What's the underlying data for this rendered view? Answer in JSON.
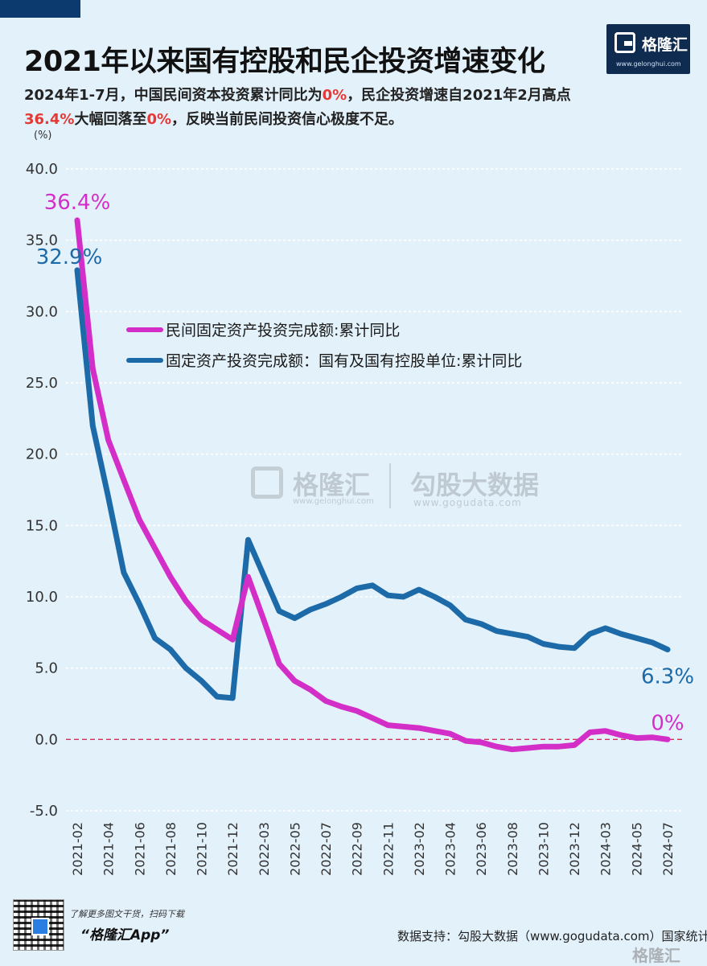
{
  "header": {
    "title": "2021年以来国有控股和民企投资增速变化",
    "subtitle_1": "2024年1-7月，中国民间资本投资累计同比为",
    "subtitle_red_1": "0%",
    "subtitle_2": "，民企投资增速自2021年2月高点",
    "subtitle_red_2": "36.4%",
    "subtitle_3": "大幅回落至",
    "subtitle_red_3": "0%",
    "subtitle_4": "，反映当前民间投资信心极度不足。",
    "unit": "(%)"
  },
  "brand": {
    "logo_text": "格隆汇",
    "logo_url": "www.gelonghui.com",
    "watermark_1": "格隆汇",
    "watermark_url_1": "www.gelonghui.com",
    "watermark_2": "勾股大数据",
    "watermark_url_2": "www.gogudata.com"
  },
  "footer": {
    "qr_note": "了解更多图文干货，扫码下载",
    "app_name": "“格隆汇App”",
    "source": "数据支持：勾股大数据（www.gogudata.com）国家统计局",
    "corner_logo": "格隆汇"
  },
  "colors": {
    "private": "#d42ec8",
    "state": "#1c6aa8",
    "zero_line": "#d0305a",
    "grid": "#ffffff",
    "background": "#e3f1fb",
    "highlight_red": "#e53935"
  },
  "chart_data": {
    "type": "line",
    "ylim": [
      -5,
      40
    ],
    "yticks": [
      "-5.0",
      "0.0",
      "5.0",
      "10.0",
      "15.0",
      "20.0",
      "25.0",
      "30.0",
      "35.0",
      "40.0"
    ],
    "xtick_labels": [
      "2021-02",
      "2021-04",
      "2021-06",
      "2021-08",
      "2021-10",
      "2021-12",
      "2022-03",
      "2022-05",
      "2022-07",
      "2022-09",
      "2022-11",
      "2023-02",
      "2023-04",
      "2023-06",
      "2023-08",
      "2023-10",
      "2023-12",
      "2024-03",
      "2024-05",
      "2024-07"
    ],
    "x": [
      "2021-02",
      "2021-03",
      "2021-04",
      "2021-05",
      "2021-06",
      "2021-07",
      "2021-08",
      "2021-09",
      "2021-10",
      "2021-11",
      "2021-12",
      "2022-02",
      "2022-03",
      "2022-04",
      "2022-05",
      "2022-06",
      "2022-07",
      "2022-08",
      "2022-09",
      "2022-10",
      "2022-11",
      "2022-12",
      "2023-02",
      "2023-03",
      "2023-04",
      "2023-05",
      "2023-06",
      "2023-07",
      "2023-08",
      "2023-09",
      "2023-10",
      "2023-11",
      "2023-12",
      "2024-02",
      "2024-03",
      "2024-04",
      "2024-05",
      "2024-06",
      "2024-07"
    ],
    "series": [
      {
        "name": "民间固定资产投资完成额:累计同比",
        "color": "#d42ec8",
        "values": [
          36.4,
          26.0,
          21.0,
          18.2,
          15.4,
          13.4,
          11.4,
          9.7,
          8.4,
          7.7,
          7.0,
          11.4,
          8.4,
          5.3,
          4.1,
          3.5,
          2.7,
          2.3,
          2.0,
          1.5,
          1.0,
          0.9,
          0.8,
          0.6,
          0.4,
          -0.1,
          -0.2,
          -0.5,
          -0.7,
          -0.6,
          -0.5,
          -0.5,
          -0.4,
          0.5,
          0.6,
          0.3,
          0.1,
          0.15,
          0.0
        ]
      },
      {
        "name": "固定资产投资完成额：国有及国有控股单位:累计同比",
        "color": "#1c6aa8",
        "values": [
          32.9,
          22.0,
          17.0,
          11.7,
          9.5,
          7.1,
          6.3,
          5.0,
          4.1,
          3.0,
          2.9,
          14.0,
          11.5,
          9.0,
          8.5,
          9.1,
          9.5,
          10.0,
          10.6,
          10.8,
          10.1,
          10.0,
          10.5,
          10.0,
          9.4,
          8.4,
          8.1,
          7.6,
          7.4,
          7.2,
          6.7,
          6.5,
          6.4,
          7.4,
          7.8,
          7.4,
          7.1,
          6.8,
          6.3
        ]
      }
    ],
    "annotations": [
      {
        "text": "36.4%",
        "series": 0,
        "at": "2021-02"
      },
      {
        "text": "32.9%",
        "series": 1,
        "at": "2021-02"
      },
      {
        "text": "6.3%",
        "series": 1,
        "at": "2024-07"
      },
      {
        "text": "0%",
        "series": 0,
        "at": "2024-07"
      }
    ],
    "zero_line": true,
    "grid": "horizontal-dashed",
    "legend": "center-left"
  }
}
